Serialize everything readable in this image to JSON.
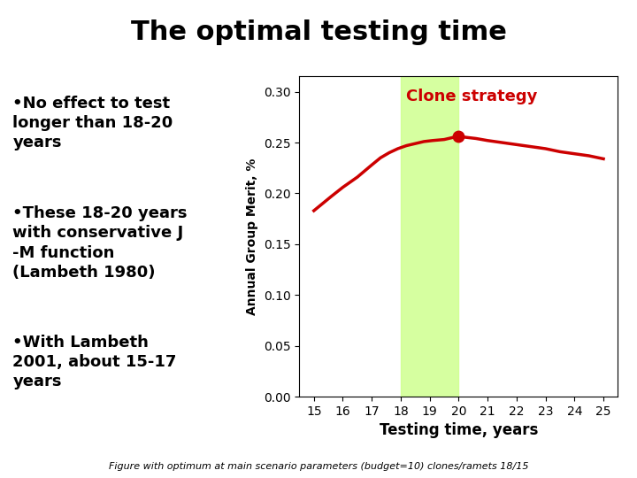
{
  "chart_data": {
    "type": "line",
    "title": "The optimal testing time",
    "x": [
      15,
      15.3,
      15.6,
      16,
      16.5,
      17,
      17.3,
      17.6,
      17.9,
      18.2,
      18.5,
      18.8,
      19.1,
      19.5,
      19.8,
      20.0,
      20.3,
      20.6,
      21,
      21.5,
      22,
      22.5,
      23,
      23.5,
      24,
      24.5,
      25
    ],
    "values": [
      0.183,
      0.19,
      0.197,
      0.206,
      0.216,
      0.228,
      0.235,
      0.24,
      0.244,
      0.247,
      0.249,
      0.251,
      0.252,
      0.253,
      0.255,
      0.256,
      0.255,
      0.254,
      0.252,
      0.25,
      0.248,
      0.246,
      0.244,
      0.241,
      0.239,
      0.237,
      0.234
    ],
    "color": "#CC0000",
    "peak": {
      "x": 20.0,
      "y": 0.256,
      "color": "#CC0000",
      "marker": "o"
    },
    "span": [
      18,
      20
    ],
    "span_color": "#CCFF88",
    "annotations": [
      {
        "text": "Clone strategy",
        "x": 18.2,
        "y": 0.291,
        "color": "#CC0000"
      }
    ],
    "xlabel": "Testing time, years",
    "ylabel": "Annual Group Merit, %",
    "xlim": [
      14.5,
      25.5
    ],
    "ylim": [
      0.0,
      0.315
    ],
    "xticks": [
      15,
      16,
      17,
      18,
      19,
      20,
      21,
      22,
      23,
      24,
      25
    ],
    "yticks": [
      {
        "value": 0.0,
        "label": "0.00"
      },
      0.05,
      {
        "value": 0.1,
        "label": "0.10"
      },
      0.15,
      {
        "value": 0.2,
        "label": "0.20"
      },
      0.25,
      {
        "value": 0.3,
        "label": "0.30"
      }
    ],
    "grid": false,
    "notes": [
      [
        "•No effect to test",
        "longer than 18-20",
        "years"
      ],
      [
        "•These 18-20 years",
        "with conservative J",
        "-M function",
        "(Lambeth 1980)"
      ],
      [
        "•With Lambeth",
        "2001, about 15-17",
        "years"
      ]
    ],
    "footer": "Figure with optimum at main scenario parameters (budget=10) clones/ramets 18/15"
  }
}
